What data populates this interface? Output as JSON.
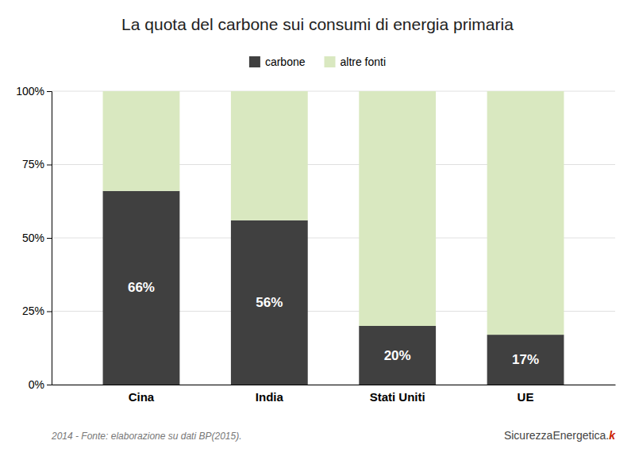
{
  "chart_data": {
    "type": "bar",
    "title": "La quota del carbone sui consumi di energia primaria",
    "categories": [
      "Cina",
      "India",
      "Stati Uniti",
      "UE"
    ],
    "series": [
      {
        "name": "carbone",
        "color": "#404040",
        "values": [
          66,
          56,
          20,
          17
        ],
        "data_labels": true,
        "value_labels": [
          "66%",
          "56%",
          "20%",
          "17%"
        ]
      },
      {
        "name": "altre fonti",
        "color": "#d9e8c0",
        "values": [
          34,
          44,
          80,
          83
        ]
      }
    ],
    "stacked": true,
    "ylim": [
      0,
      100
    ],
    "yticks": [
      {
        "value": 0,
        "label": "0%"
      },
      {
        "value": 25,
        "label": "25%"
      },
      {
        "value": 50,
        "label": "50%"
      },
      {
        "value": 75,
        "label": "75%"
      },
      {
        "value": 100,
        "label": "100%"
      }
    ],
    "grid": true,
    "legend": "top",
    "annotations": [
      "2014 - Fonte: elaborazione su dati BP(2015).",
      "SicurezzaEnergetica.",
      "k"
    ]
  }
}
